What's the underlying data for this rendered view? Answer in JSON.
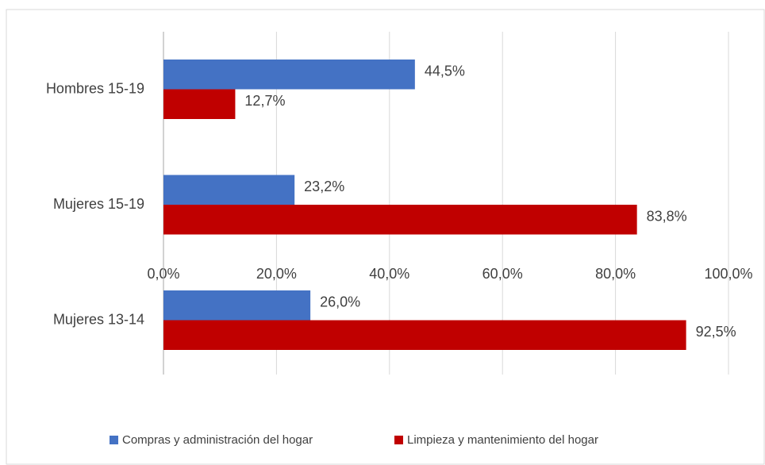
{
  "chart_data": {
    "type": "hbar",
    "categories": [
      "Hombres 15-19",
      "Mujeres 15-19",
      "Mujeres 13-14"
    ],
    "series": [
      {
        "name": "Compras y administración del hogar",
        "color": "#4472c4",
        "values": [
          44.5,
          23.2,
          26.0
        ],
        "value_labels": [
          "44,5%",
          "23,2%",
          "26,0%"
        ]
      },
      {
        "name": "Limpieza y mantenimiento del hogar",
        "color": "#c00000",
        "values": [
          12.7,
          83.8,
          92.5
        ],
        "value_labels": [
          "12,7%",
          "83,8%",
          "92,5%"
        ]
      }
    ],
    "xlim": [
      0,
      100
    ],
    "xticks": [
      {
        "value": 0,
        "label": "0,0%"
      },
      {
        "value": 20,
        "label": "20,0%"
      },
      {
        "value": 40,
        "label": "40,0%"
      },
      {
        "value": 60,
        "label": "60,0%"
      },
      {
        "value": 80,
        "label": "80,0%"
      },
      {
        "value": 100,
        "label": "100,0%"
      }
    ],
    "grid": true,
    "legend": "bottom"
  }
}
